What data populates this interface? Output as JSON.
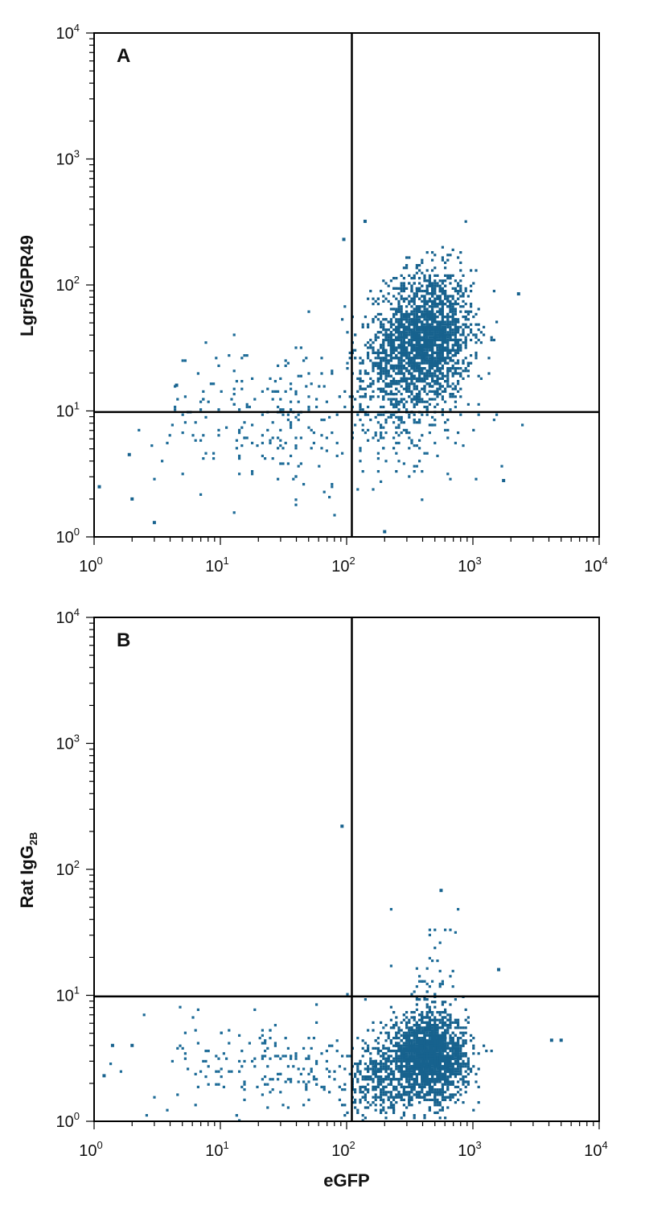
{
  "chart_data": [
    {
      "type": "scatter",
      "panel_label": "A",
      "ylabel": "Lgr5/GPR49",
      "ylabel_subscript": "",
      "xlabel": "",
      "x_scale": "log",
      "y_scale": "log",
      "xlim": [
        1,
        10000
      ],
      "ylim": [
        1,
        10000
      ],
      "x_tick_labels": [
        {
          "base": "10",
          "exp": "0"
        },
        {
          "base": "10",
          "exp": "1"
        },
        {
          "base": "10",
          "exp": "2"
        },
        {
          "base": "10",
          "exp": "3"
        },
        {
          "base": "10",
          "exp": "4"
        }
      ],
      "y_tick_labels": [
        {
          "base": "10",
          "exp": "0"
        },
        {
          "base": "10",
          "exp": "1"
        },
        {
          "base": "10",
          "exp": "2"
        },
        {
          "base": "10",
          "exp": "3"
        },
        {
          "base": "10",
          "exp": "4"
        }
      ],
      "quadrant_gate": {
        "x": 110,
        "y": 9.8
      },
      "point_color": "#17628e",
      "clusters": [
        {
          "cx": 450,
          "cy": 40,
          "spread_x": 0.17,
          "spread_y": 0.26,
          "count": 1700,
          "color": "#17628e"
        },
        {
          "cx": 230,
          "cy": 22,
          "spread_x": 0.16,
          "spread_y": 0.22,
          "count": 450,
          "color": "#17628e"
        },
        {
          "cx": 25,
          "cy": 9,
          "spread_x": 0.45,
          "spread_y": 0.3,
          "count": 220,
          "color": "#1d6b97"
        },
        {
          "cx": 300,
          "cy": 7,
          "spread_x": 0.3,
          "spread_y": 0.22,
          "count": 120,
          "color": "#1d6b97"
        }
      ],
      "outliers": [
        {
          "x": 95,
          "y": 230
        },
        {
          "x": 140,
          "y": 320
        },
        {
          "x": 1.1,
          "y": 2.5
        },
        {
          "x": 1.9,
          "y": 4.5
        },
        {
          "x": 4.5,
          "y": 16
        },
        {
          "x": 1750,
          "y": 2.8
        },
        {
          "x": 2300,
          "y": 85
        },
        {
          "x": 200,
          "y": 1.1
        },
        {
          "x": 3.0,
          "y": 1.3
        },
        {
          "x": 2.0,
          "y": 2.0
        }
      ]
    },
    {
      "type": "scatter",
      "panel_label": "B",
      "ylabel": "Rat IgG",
      "ylabel_subscript": "2B",
      "xlabel": "eGFP",
      "x_scale": "log",
      "y_scale": "log",
      "xlim": [
        1,
        10000
      ],
      "ylim": [
        1,
        10000
      ],
      "x_tick_labels": [
        {
          "base": "10",
          "exp": "0"
        },
        {
          "base": "10",
          "exp": "1"
        },
        {
          "base": "10",
          "exp": "2"
        },
        {
          "base": "10",
          "exp": "3"
        },
        {
          "base": "10",
          "exp": "4"
        }
      ],
      "y_tick_labels": [
        {
          "base": "10",
          "exp": "0"
        },
        {
          "base": "10",
          "exp": "1"
        },
        {
          "base": "10",
          "exp": "2"
        },
        {
          "base": "10",
          "exp": "3"
        },
        {
          "base": "10",
          "exp": "4"
        }
      ],
      "quadrant_gate": {
        "x": 110,
        "y": 9.8
      },
      "point_color": "#17628e",
      "clusters": [
        {
          "cx": 450,
          "cy": 3.2,
          "spread_x": 0.15,
          "spread_y": 0.17,
          "count": 1800,
          "color": "#17628e"
        },
        {
          "cx": 190,
          "cy": 2.2,
          "spread_x": 0.14,
          "spread_y": 0.16,
          "count": 350,
          "color": "#17628e"
        },
        {
          "cx": 28,
          "cy": 2.8,
          "spread_x": 0.42,
          "spread_y": 0.2,
          "count": 200,
          "color": "#1d6b97"
        },
        {
          "cx": 480,
          "cy": 14,
          "spread_x": 0.1,
          "spread_y": 0.25,
          "count": 45,
          "color": "#1d6b97"
        }
      ],
      "outliers": [
        {
          "x": 92,
          "y": 220
        },
        {
          "x": 560,
          "y": 68
        },
        {
          "x": 1.4,
          "y": 4.0
        },
        {
          "x": 1.2,
          "y": 2.3
        },
        {
          "x": 4200,
          "y": 4.4
        },
        {
          "x": 5000,
          "y": 4.4
        },
        {
          "x": 1600,
          "y": 16
        },
        {
          "x": 2.0,
          "y": 4.0
        }
      ]
    }
  ]
}
